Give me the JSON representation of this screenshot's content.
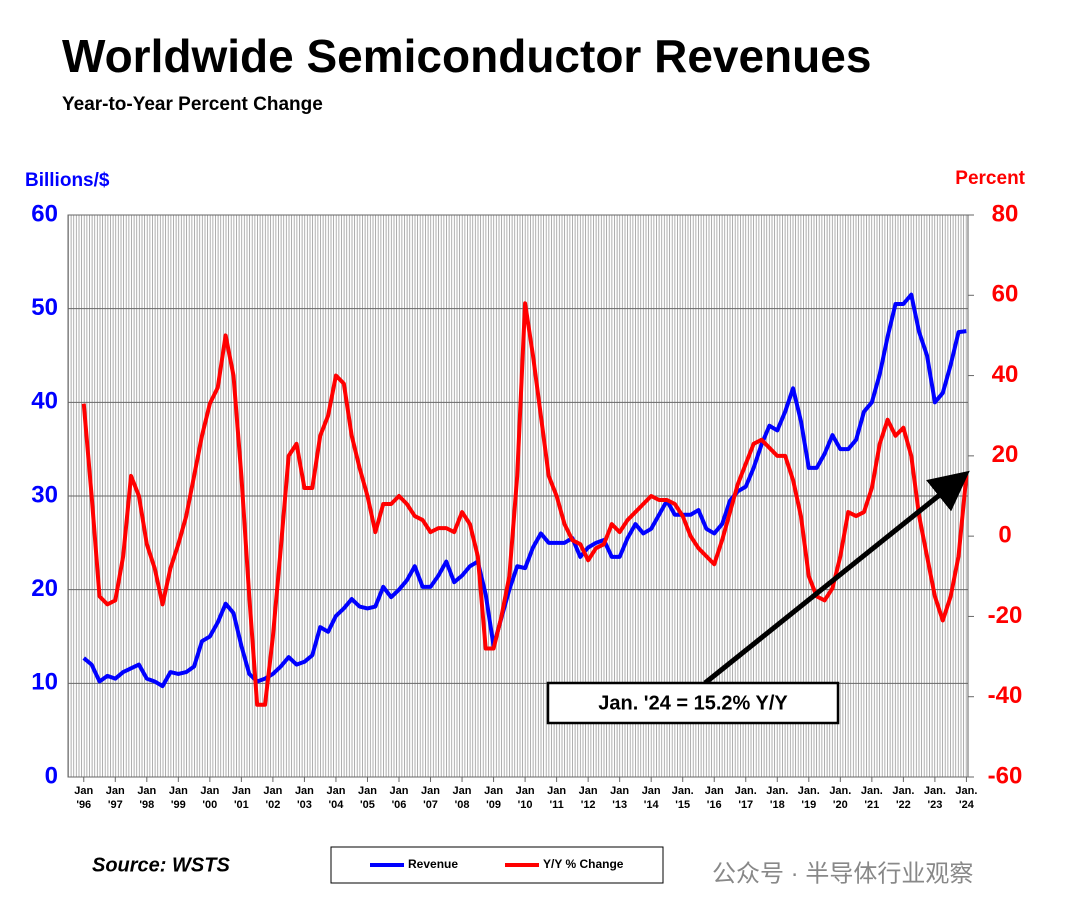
{
  "chart_data": {
    "type": "line",
    "title": "Worldwide Semiconductor Revenues",
    "subtitle": "Year-to-Year Percent Change",
    "y_label": "Billions/$",
    "y2_label": "Percent",
    "source": "Source: WSTS",
    "watermark": "公众号 · 半导体行业观察",
    "annotation": "Jan. '24 = 15.2% Y/Y",
    "xlim": [
      1995.5,
      2024.05
    ],
    "xticks": [
      {
        "value": 1996,
        "label": "Jan '96"
      },
      {
        "value": 1997,
        "label": "Jan '97"
      },
      {
        "value": 1998,
        "label": "Jan '98"
      },
      {
        "value": 1999,
        "label": "Jan '99"
      },
      {
        "value": 2000,
        "label": "Jan '00"
      },
      {
        "value": 2001,
        "label": "Jan '01"
      },
      {
        "value": 2002,
        "label": "Jan '02"
      },
      {
        "value": 2003,
        "label": "Jan '03"
      },
      {
        "value": 2004,
        "label": "Jan '04"
      },
      {
        "value": 2005,
        "label": "Jan '05"
      },
      {
        "value": 2006,
        "label": "Jan '06"
      },
      {
        "value": 2007,
        "label": "Jan '07"
      },
      {
        "value": 2008,
        "label": "Jan '08"
      },
      {
        "value": 2009,
        "label": "Jan '09"
      },
      {
        "value": 2010,
        "label": "Jan '10"
      },
      {
        "value": 2011,
        "label": "Jan '11"
      },
      {
        "value": 2012,
        "label": "Jan '12"
      },
      {
        "value": 2013,
        "label": "Jan '13"
      },
      {
        "value": 2014,
        "label": "Jan '14"
      },
      {
        "value": 2015,
        "label": "Jan. '15"
      },
      {
        "value": 2016,
        "label": "Jan '16"
      },
      {
        "value": 2017,
        "label": "Jan. '17"
      },
      {
        "value": 2018,
        "label": "Jan. '18"
      },
      {
        "value": 2019,
        "label": "Jan. '19"
      },
      {
        "value": 2020,
        "label": "Jan. '20"
      },
      {
        "value": 2021,
        "label": "Jan. '21"
      },
      {
        "value": 2022,
        "label": "Jan. '22"
      },
      {
        "value": 2023,
        "label": "Jan. '23"
      },
      {
        "value": 2024,
        "label": "Jan. '24"
      }
    ],
    "ylim": [
      0,
      60
    ],
    "yticks": [
      0,
      10,
      20,
      30,
      40,
      50,
      60
    ],
    "y2lim": [
      -60,
      80
    ],
    "y2ticks": [
      -60,
      -40,
      -20,
      0,
      20,
      40,
      60,
      80
    ],
    "grid": true,
    "x": [
      1996,
      1996.25,
      1996.5,
      1996.75,
      1997,
      1997.25,
      1997.5,
      1997.75,
      1998,
      1998.25,
      1998.5,
      1998.75,
      1999,
      1999.25,
      1999.5,
      1999.75,
      2000,
      2000.25,
      2000.5,
      2000.75,
      2001,
      2001.25,
      2001.5,
      2001.75,
      2002,
      2002.25,
      2002.5,
      2002.75,
      2003,
      2003.25,
      2003.5,
      2003.75,
      2004,
      2004.25,
      2004.5,
      2004.75,
      2005,
      2005.25,
      2005.5,
      2005.75,
      2006,
      2006.25,
      2006.5,
      2006.75,
      2007,
      2007.25,
      2007.5,
      2007.75,
      2008,
      2008.25,
      2008.5,
      2008.75,
      2009,
      2009.25,
      2009.5,
      2009.75,
      2010,
      2010.25,
      2010.5,
      2010.75,
      2011,
      2011.25,
      2011.5,
      2011.75,
      2012,
      2012.25,
      2012.5,
      2012.75,
      2013,
      2013.25,
      2013.5,
      2013.75,
      2014,
      2014.25,
      2014.5,
      2014.75,
      2015,
      2015.25,
      2015.5,
      2015.75,
      2016,
      2016.25,
      2016.5,
      2016.75,
      2017,
      2017.25,
      2017.5,
      2017.75,
      2018,
      2018.25,
      2018.5,
      2018.75,
      2019,
      2019.25,
      2019.5,
      2019.75,
      2020,
      2020.25,
      2020.5,
      2020.75,
      2021,
      2021.25,
      2021.5,
      2021.75,
      2022,
      2022.25,
      2022.5,
      2022.75,
      2023,
      2023.25,
      2023.5,
      2023.75,
      2024
    ],
    "series": [
      {
        "name": "Revenue",
        "color": "#0000ff",
        "values": [
          12.7,
          12,
          10.2,
          10.8,
          10.5,
          11.2,
          11.6,
          12,
          10.5,
          10.2,
          9.7,
          11.2,
          11,
          11.2,
          11.8,
          14.5,
          15,
          16.5,
          18.5,
          17.5,
          14,
          11,
          10.2,
          10.5,
          11,
          11.8,
          12.8,
          12,
          12.3,
          13,
          16,
          15.5,
          17.2,
          18,
          19,
          18.2,
          18,
          18.2,
          20.3,
          19.2,
          20,
          21,
          22.5,
          20.3,
          20.3,
          21.5,
          23,
          20.8,
          21.5,
          22.5,
          23,
          19.5,
          14,
          17,
          20,
          22.5,
          22.3,
          24.5,
          26,
          25,
          25,
          25,
          25.5,
          23.5,
          24.5,
          25,
          25.3,
          23.5,
          23.5,
          25.5,
          27,
          26,
          26.5,
          28,
          29.5,
          28,
          28,
          28,
          28.5,
          26.5,
          26,
          27,
          29.5,
          30.5,
          31,
          33,
          35.5,
          37.5,
          37,
          39,
          41.5,
          38,
          33,
          33,
          34.5,
          36.5,
          35,
          35,
          36,
          39,
          40,
          43,
          47,
          50.5,
          50.5,
          51.5,
          47.5,
          45,
          40,
          41,
          44,
          47.5,
          47.6
        ]
      },
      {
        "name": "Y/Y % Change",
        "color": "#ff0000",
        "axis": "y2",
        "values": [
          33,
          10,
          -15,
          -17,
          -16,
          -5,
          15,
          10,
          -2,
          -8,
          -17,
          -8,
          -2,
          5,
          15,
          25,
          33,
          37,
          50,
          40,
          15,
          -15,
          -42,
          -42,
          -25,
          -3,
          20,
          23,
          12,
          12,
          25,
          30,
          40,
          38,
          25,
          17,
          10,
          1,
          8,
          8,
          10,
          8,
          5,
          4,
          1,
          2,
          2,
          1,
          6,
          3,
          -5,
          -28,
          -28,
          -20,
          -10,
          15,
          58,
          45,
          30,
          15,
          10,
          3,
          -1,
          -2,
          -6,
          -3,
          -2,
          3,
          1,
          4,
          6,
          8,
          10,
          9,
          9,
          8,
          5,
          0,
          -3,
          -5,
          -7,
          -1,
          6,
          13,
          18,
          23,
          24,
          22,
          20,
          20,
          14,
          5,
          -10,
          -15,
          -16,
          -13,
          -5,
          6,
          5,
          6,
          12,
          23,
          29,
          25,
          27,
          20,
          5,
          -5,
          -15,
          -21,
          -15,
          -5,
          15.2
        ]
      }
    ]
  }
}
